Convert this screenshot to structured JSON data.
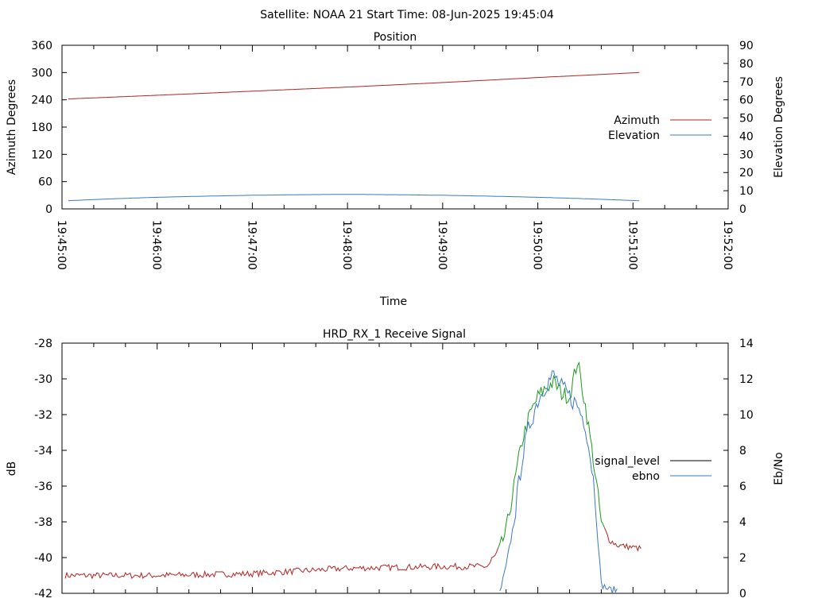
{
  "header": {
    "title": "Satellite: NOAA 21    Start Time: 08-Jun-2025 19:45:04"
  },
  "colors": {
    "azimuth": "#b22222",
    "elevation": "#3b78c4",
    "signal_level": "#000000",
    "signal_red": "#b22222",
    "signal_green": "#1a9a1a",
    "ebno": "#3b78c4"
  },
  "chart_data": [
    {
      "type": "line",
      "title": "Position",
      "xlabel": "Time",
      "ylabel": "Azimuth Degrees",
      "y2label": "Elevation Degrees",
      "xlim_seconds": [
        0,
        420
      ],
      "x_ticks": [
        "19:45:00",
        "19:46:00",
        "19:47:00",
        "19:48:00",
        "19:49:00",
        "19:50:00",
        "19:51:00",
        "19:52:00"
      ],
      "y_ticks": [
        "0",
        "60",
        "120",
        "180",
        "240",
        "300",
        "360"
      ],
      "ylim": [
        0,
        360
      ],
      "y2_ticks": [
        "0",
        "10",
        "20",
        "30",
        "40",
        "50",
        "60",
        "70",
        "80",
        "90"
      ],
      "y2lim": [
        0,
        90
      ],
      "legend_placement": "right",
      "series": [
        {
          "name": "Azimuth",
          "axis": "y1",
          "x": [
            "19:45:04",
            "19:46:00",
            "19:47:00",
            "19:48:00",
            "19:49:00",
            "19:50:00",
            "19:51:04"
          ],
          "values": [
            242,
            250,
            259,
            268,
            278,
            289,
            300
          ]
        },
        {
          "name": "Elevation",
          "axis": "y2",
          "x": [
            "19:45:04",
            "19:45:30",
            "19:46:00",
            "19:46:30",
            "19:47:00",
            "19:47:30",
            "19:48:00",
            "19:48:30",
            "19:49:00",
            "19:49:30",
            "19:50:00",
            "19:50:30",
            "19:51:04"
          ],
          "values": [
            4.5,
            5.5,
            6.4,
            7.0,
            7.5,
            7.8,
            8.0,
            7.8,
            7.5,
            7.0,
            6.4,
            5.6,
            4.5
          ]
        }
      ]
    },
    {
      "type": "line",
      "title": "HRD_RX_1 Receive Signal",
      "ylabel": "dB",
      "y2label": "Eb/No",
      "xlim_seconds": [
        0,
        420
      ],
      "y_ticks": [
        "-28",
        "-30",
        "-32",
        "-34",
        "-36",
        "-38",
        "-40",
        "-42"
      ],
      "ylim": [
        -42,
        -28
      ],
      "y2_ticks": [
        "0",
        "2",
        "4",
        "6",
        "8",
        "10",
        "12",
        "14"
      ],
      "y2lim": [
        0,
        14
      ],
      "legend_placement": "right",
      "series": [
        {
          "name": "signal_level",
          "axis": "y1",
          "x": [
            "19:45:02",
            "19:46:00",
            "19:47:00",
            "19:48:00",
            "19:49:00",
            "19:49:28",
            "19:49:35",
            "19:49:40",
            "19:49:45",
            "19:49:50",
            "19:49:55",
            "19:50:00",
            "19:50:05",
            "19:50:10",
            "19:50:15",
            "19:50:20",
            "19:50:25",
            "19:50:30",
            "19:50:35",
            "19:50:40",
            "19:50:45",
            "19:50:50",
            "19:51:05"
          ],
          "values": [
            -41.0,
            -41.0,
            -40.9,
            -40.6,
            -40.5,
            -40.5,
            -39.8,
            -38.5,
            -36.0,
            -33.5,
            -32.0,
            -31.0,
            -30.5,
            -30.2,
            -30.8,
            -31.0,
            -29.0,
            -31.5,
            -34.5,
            -38.0,
            -39.0,
            -39.3,
            -39.5
          ]
        },
        {
          "name": "ebno",
          "axis": "y2",
          "x": [
            "19:49:36",
            "19:49:40",
            "19:49:45",
            "19:49:50",
            "19:49:55",
            "19:50:00",
            "19:50:05",
            "19:50:10",
            "19:50:15",
            "19:50:20",
            "19:50:25",
            "19:50:30",
            "19:50:35",
            "19:50:40",
            "19:50:45",
            "19:50:50"
          ],
          "values": [
            0,
            1.5,
            4.0,
            7.5,
            9.5,
            10.8,
            11.7,
            12.2,
            11.5,
            11.0,
            10.5,
            9.5,
            6.5,
            0.5,
            0.2,
            0.2
          ]
        }
      ]
    }
  ]
}
